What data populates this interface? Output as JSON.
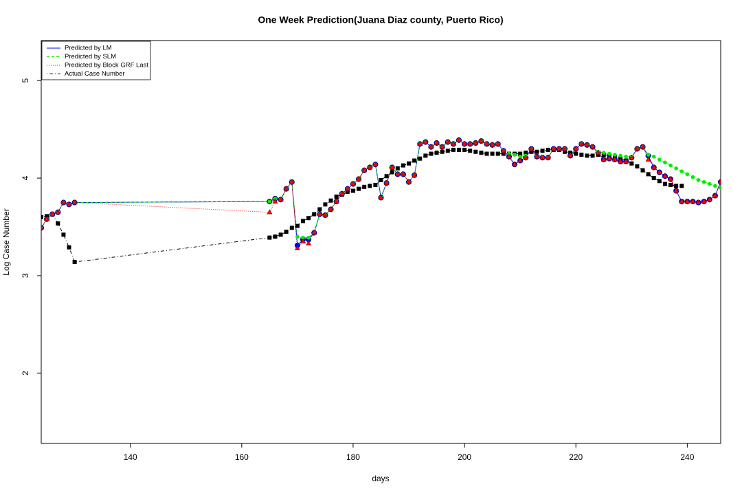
{
  "chart_data": {
    "type": "line",
    "title": "One Week Prediction(Juana Diaz county, Puerto Rico)",
    "x_label": "days",
    "y_label": "Log Case Number",
    "xlim": [
      124,
      246
    ],
    "ylim": [
      1.28,
      5.41
    ],
    "xticks": [
      140,
      160,
      180,
      200,
      220,
      240
    ],
    "yticks": [
      2,
      3,
      4,
      5
    ],
    "grid": false,
    "legend": "top-left",
    "x": [
      124,
      125,
      126,
      127,
      128,
      129,
      130,
      165,
      166,
      167,
      168,
      169,
      170,
      171,
      172,
      173,
      174,
      175,
      176,
      177,
      178,
      179,
      180,
      181,
      182,
      183,
      184,
      185,
      186,
      187,
      188,
      189,
      190,
      191,
      192,
      193,
      194,
      195,
      196,
      197,
      198,
      199,
      200,
      201,
      202,
      203,
      204,
      205,
      206,
      207,
      208,
      209,
      210,
      211,
      212,
      213,
      214,
      215,
      216,
      217,
      218,
      219,
      220,
      221,
      222,
      223,
      224,
      225,
      226,
      227,
      228,
      229,
      230,
      231,
      232,
      233,
      234,
      235,
      236,
      237,
      238,
      239,
      240,
      241,
      242,
      243,
      244,
      245,
      246
    ],
    "series": [
      {
        "name": "Predicted by LM",
        "color": "#0000ff",
        "dash": "solid",
        "marker": "circle",
        "values": [
          3.49,
          3.58,
          3.63,
          3.65,
          3.75,
          3.73,
          3.75,
          3.76,
          3.79,
          3.78,
          3.89,
          3.96,
          3.31,
          3.37,
          3.37,
          3.44,
          3.63,
          3.62,
          3.68,
          3.76,
          3.84,
          3.89,
          3.94,
          3.99,
          4.08,
          4.11,
          4.14,
          3.8,
          3.95,
          4.11,
          4.04,
          4.04,
          3.96,
          4.03,
          4.35,
          4.37,
          4.32,
          4.36,
          4.32,
          4.37,
          4.35,
          4.39,
          4.35,
          4.35,
          4.36,
          4.38,
          4.35,
          4.34,
          4.35,
          4.28,
          4.22,
          4.14,
          4.18,
          4.21,
          4.3,
          4.22,
          4.21,
          4.21,
          4.3,
          4.3,
          4.3,
          4.23,
          4.3,
          4.35,
          4.34,
          4.32,
          4.26,
          4.19,
          4.2,
          4.19,
          4.17,
          4.17,
          4.21,
          4.3,
          4.32,
          4.23,
          4.11,
          4.06,
          4.02,
          3.99,
          3.87,
          3.76,
          3.76,
          3.76,
          3.75,
          3.76,
          3.78,
          3.82,
          3.96
        ]
      },
      {
        "name": "Predicted by SLM",
        "color": "#00ee00",
        "dash": "dashed",
        "marker": "circle",
        "values": [
          3.49,
          3.58,
          3.63,
          3.65,
          3.75,
          3.73,
          3.75,
          3.76,
          3.79,
          3.78,
          3.89,
          3.96,
          3.4,
          3.39,
          3.39,
          3.44,
          3.63,
          3.62,
          3.68,
          3.76,
          3.84,
          3.89,
          3.94,
          3.99,
          4.08,
          4.11,
          4.14,
          3.8,
          3.95,
          4.11,
          4.04,
          4.04,
          3.96,
          4.03,
          4.35,
          4.37,
          4.32,
          4.36,
          4.32,
          4.37,
          4.35,
          4.39,
          4.35,
          4.35,
          4.36,
          4.38,
          4.35,
          4.34,
          4.35,
          4.28,
          4.25,
          4.24,
          4.22,
          4.23,
          4.3,
          4.22,
          4.21,
          4.21,
          4.3,
          4.3,
          4.3,
          4.23,
          4.3,
          4.35,
          4.34,
          4.32,
          4.27,
          4.26,
          4.25,
          4.24,
          4.23,
          4.22,
          4.22,
          4.3,
          4.32,
          4.24,
          4.22,
          4.19,
          4.16,
          4.13,
          4.1,
          4.07,
          4.04,
          4.01,
          3.98,
          3.96,
          3.94,
          3.92,
          3.9
        ]
      },
      {
        "name": "Predicted by Block GRF Last",
        "color": "#ff0000",
        "dash": "dotted",
        "marker": "triangle",
        "values": [
          3.49,
          3.58,
          3.63,
          3.65,
          3.75,
          3.73,
          3.75,
          3.65,
          3.76,
          3.78,
          3.89,
          3.96,
          3.28,
          3.35,
          3.33,
          3.44,
          3.63,
          3.62,
          3.68,
          3.76,
          3.84,
          3.89,
          3.94,
          3.99,
          4.08,
          4.11,
          4.14,
          3.8,
          3.95,
          4.11,
          4.04,
          4.04,
          3.96,
          4.03,
          4.35,
          4.37,
          4.32,
          4.36,
          4.32,
          4.37,
          4.35,
          4.39,
          4.35,
          4.35,
          4.36,
          4.38,
          4.35,
          4.34,
          4.35,
          4.28,
          4.22,
          4.14,
          4.18,
          4.21,
          4.3,
          4.22,
          4.21,
          4.21,
          4.3,
          4.3,
          4.3,
          4.23,
          4.3,
          4.35,
          4.34,
          4.32,
          4.26,
          4.19,
          4.2,
          4.19,
          4.17,
          4.17,
          4.21,
          4.3,
          4.32,
          4.19,
          4.11,
          4.06,
          4.02,
          3.99,
          3.87,
          3.76,
          3.76,
          3.76,
          3.75,
          3.76,
          3.78,
          3.82,
          3.96
        ]
      },
      {
        "name": "Actual Case Number",
        "color": "#000000",
        "dash": "dashdot",
        "marker": "square",
        "values": [
          3.6,
          3.61,
          3.63,
          3.535,
          3.42,
          3.29,
          3.14,
          3.39,
          3.4,
          3.42,
          3.45,
          3.49,
          3.51,
          3.56,
          3.59,
          3.63,
          3.68,
          3.73,
          3.77,
          3.81,
          3.83,
          3.86,
          3.87,
          3.89,
          3.91,
          3.92,
          3.93,
          3.98,
          4.02,
          4.06,
          4.1,
          4.13,
          4.15,
          4.18,
          4.2,
          4.23,
          4.25,
          4.26,
          4.27,
          4.28,
          4.29,
          4.29,
          4.29,
          4.28,
          4.27,
          4.26,
          4.25,
          4.25,
          4.25,
          4.25,
          4.25,
          4.25,
          4.25,
          4.26,
          4.27,
          4.27,
          4.28,
          4.29,
          4.29,
          4.29,
          4.27,
          4.26,
          4.25,
          4.24,
          4.23,
          4.23,
          4.24,
          4.24,
          4.23,
          4.21,
          4.2,
          4.18,
          4.15,
          4.12,
          4.08,
          4.04,
          4.0,
          3.97,
          3.94,
          3.93,
          3.92,
          3.92,
          null,
          null,
          null,
          null,
          null,
          null,
          null
        ]
      }
    ]
  }
}
